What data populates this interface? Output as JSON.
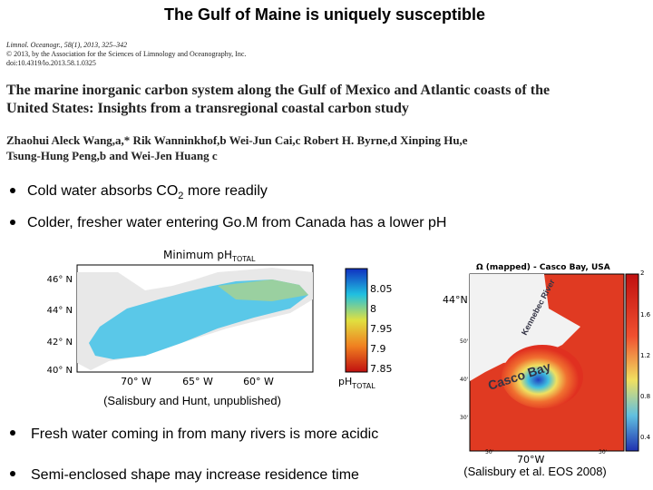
{
  "title": "The Gulf of Maine is uniquely susceptible",
  "paper": {
    "citation": [
      "Limnol. Oceanogr., 58(1), 2013, 325–342",
      "© 2013, by the Association for the Sciences of Limnology and Oceanography, Inc.",
      "doi:10.4319/lo.2013.58.1.0325"
    ],
    "title": [
      "The marine inorganic carbon system along the Gulf of Mexico and Atlantic coasts of the",
      "United States: Insights from a transregional coastal carbon study"
    ],
    "authors": [
      "Zhaohui Aleck Wang,a,* Rik Wanninkhof,b Wei-Jun Cai,c Robert H. Byrne,d Xinping Hu,e",
      "Tsung-Hung Peng,b and Wei-Jen Huang c"
    ]
  },
  "bullets_top": [
    {
      "before": "Cold water absorbs CO",
      "sub": "2",
      "after": " more readily"
    },
    {
      "text": "Colder, fresher water entering Go.M from Canada has a lower pH"
    }
  ],
  "left_map": {
    "title": "Minimum pH",
    "title_sub": "TOTAL",
    "lat_labels": [
      "46° N",
      "44° N",
      "42° N",
      "40° N"
    ],
    "lon_labels": [
      "70° W",
      "65° W",
      "60° W"
    ],
    "colorbar_ticks": [
      "8.05",
      "8",
      "7.95",
      "7.9",
      "7.85"
    ],
    "colorbar_label": "pH",
    "colorbar_label_sub": "TOTAL",
    "caption": "(Salisbury and Hunt, unpublished)"
  },
  "right_map": {
    "title": "Ω (mapped) - Casco Bay, USA",
    "lat_labels": [
      "44°N",
      "50'",
      "40'",
      "30'"
    ],
    "lon_labels": [
      "50'",
      "70°W",
      "30'"
    ],
    "place_labels": [
      "Kennebec River",
      "Casco Bay"
    ],
    "colorbar_ticks": [
      "2",
      "1.6",
      "1.2",
      "0.8",
      "0.4"
    ],
    "caption": "(Salisbury et al. EOS 2008)"
  },
  "bullets_bottom": [
    "Fresh water coming in from many rivers is more acidic",
    "Semi-enclosed shape may increase residence time"
  ]
}
